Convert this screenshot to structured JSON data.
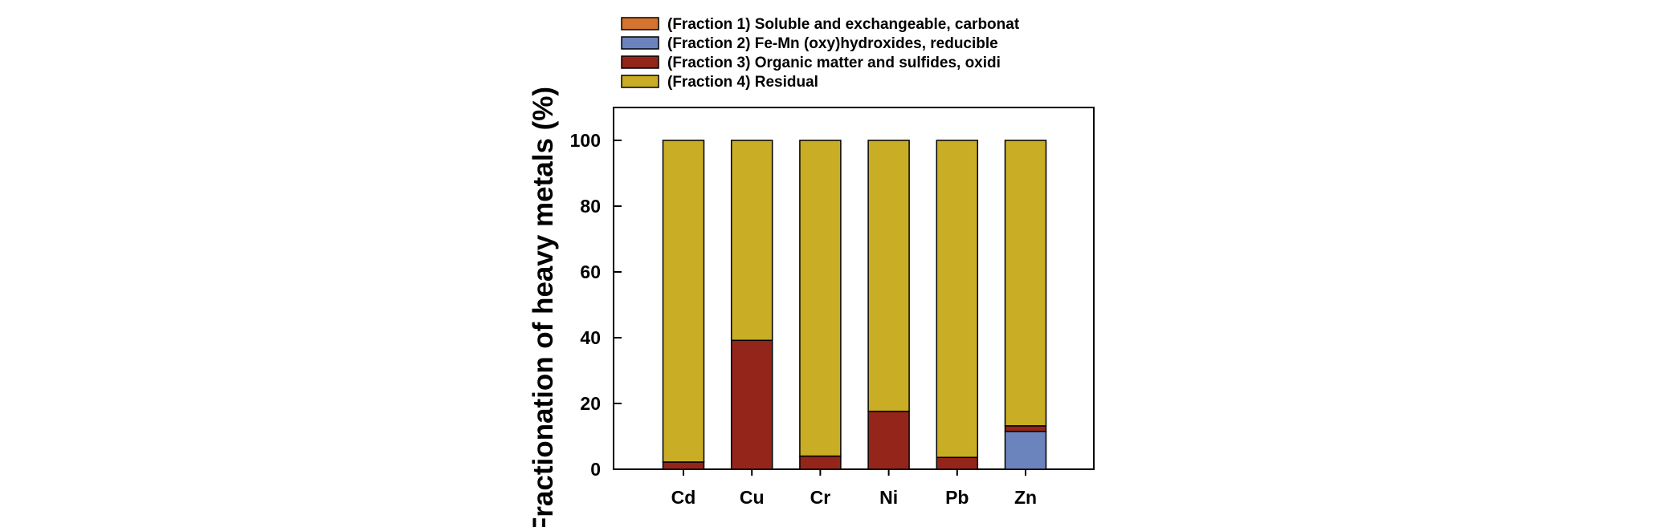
{
  "chart_data": {
    "type": "bar",
    "stacked": true,
    "categories": [
      "Cd",
      "Cu",
      "Cr",
      "Ni",
      "Pb",
      "Zn"
    ],
    "series": [
      {
        "name": "(Fraction 1) Soluble and exchangeable, carbonat",
        "color": "#d4742e",
        "values": [
          0,
          0,
          0,
          0,
          0,
          0
        ]
      },
      {
        "name": "(Fraction 2) Fe-Mn (oxy)hydroxides, reducible",
        "color": "#6b84bd",
        "values": [
          0,
          0,
          0,
          0,
          0,
          11.5
        ]
      },
      {
        "name": "(Fraction 3) Organic matter and sulfides, oxidi",
        "color": "#93251a",
        "values": [
          2.2,
          39.2,
          4.0,
          17.6,
          3.6,
          1.7
        ]
      },
      {
        "name": "(Fraction 4) Residual",
        "color": "#c9ad24",
        "values": [
          97.8,
          60.8,
          96.0,
          82.4,
          96.4,
          86.8
        ]
      }
    ],
    "ylabel": "Fractionation of heavy metals (%)",
    "xlabel": "",
    "ylim": [
      -4,
      110
    ],
    "yticks": [
      0,
      20,
      40,
      60,
      80,
      100
    ],
    "legend_position": "top",
    "grid": false
  }
}
